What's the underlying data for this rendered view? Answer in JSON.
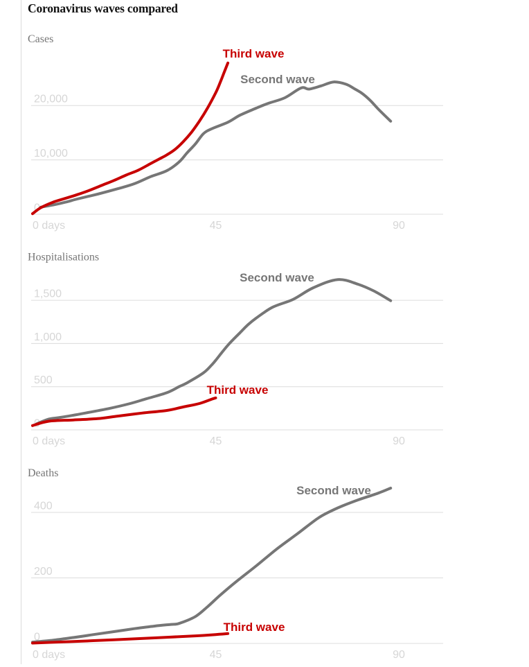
{
  "title": "Coronavirus waves compared",
  "colors": {
    "title": "#121212",
    "panel_label": "#767676",
    "tick_label": "#d6d6d6",
    "grid": "#dcdcdc",
    "rule": "#dcdcdc",
    "second_wave": "#767676",
    "third_wave": "#c70000"
  },
  "chart_data": [
    {
      "type": "line",
      "title": "Cases",
      "x_unit": "days",
      "xlim": [
        0,
        100
      ],
      "xticks": [
        "0 days",
        "45",
        "90"
      ],
      "yticks": [
        "20,000",
        "10,000",
        "0"
      ],
      "gridline_values": [
        20000,
        10000,
        0
      ],
      "legend_position": "inline-annotations",
      "grid": "horizontal-only",
      "annotations": [
        {
          "text": "Third wave"
        },
        {
          "text": "Second wave"
        }
      ],
      "series": [
        {
          "name": "Second wave",
          "color": "#767676",
          "points": [
            [
              2,
              1300
            ],
            [
              5,
              1700
            ],
            [
              8,
              2200
            ],
            [
              11,
              2800
            ],
            [
              16,
              3700
            ],
            [
              21,
              4700
            ],
            [
              25,
              5600
            ],
            [
              29,
              6900
            ],
            [
              33,
              8000
            ],
            [
              36,
              9600
            ],
            [
              38,
              11300
            ],
            [
              40,
              12900
            ],
            [
              42,
              14800
            ],
            [
              44,
              15700
            ],
            [
              48,
              16900
            ],
            [
              51,
              18200
            ],
            [
              55,
              19500
            ],
            [
              58,
              20400
            ],
            [
              62,
              21400
            ],
            [
              66,
              23200
            ],
            [
              68,
              23000
            ],
            [
              71,
              23600
            ],
            [
              74,
              24300
            ],
            [
              77,
              23900
            ],
            [
              79,
              23100
            ],
            [
              81,
              22200
            ],
            [
              83,
              20900
            ],
            [
              85,
              19300
            ],
            [
              88,
              17100
            ]
          ]
        },
        {
          "name": "Third wave",
          "color": "#c70000",
          "points": [
            [
              0,
              100
            ],
            [
              2,
              1200
            ],
            [
              5,
              2200
            ],
            [
              8,
              2900
            ],
            [
              11,
              3600
            ],
            [
              14,
              4400
            ],
            [
              17,
              5300
            ],
            [
              20,
              6200
            ],
            [
              23,
              7200
            ],
            [
              26,
              8100
            ],
            [
              29,
              9300
            ],
            [
              31,
              10100
            ],
            [
              33,
              10900
            ],
            [
              35,
              11900
            ],
            [
              37,
              13300
            ],
            [
              39,
              15000
            ],
            [
              41,
              17100
            ],
            [
              43,
              19500
            ],
            [
              45,
              22300
            ],
            [
              46,
              24000
            ],
            [
              47,
              25900
            ],
            [
              48,
              27800
            ]
          ]
        }
      ]
    },
    {
      "type": "line",
      "title": "Hospitalisations",
      "x_unit": "days",
      "xlim": [
        0,
        100
      ],
      "xticks": [
        "0 days",
        "45",
        "90"
      ],
      "yticks": [
        "1,500",
        "1,000",
        "500",
        "0"
      ],
      "gridline_values": [
        1500,
        1000,
        500,
        0
      ],
      "legend_position": "inline-annotations",
      "grid": "horizontal-only",
      "annotations": [
        {
          "text": "Second wave"
        },
        {
          "text": "Third wave"
        }
      ],
      "series": [
        {
          "name": "Second wave",
          "color": "#767676",
          "points": [
            [
              1,
              70
            ],
            [
              4,
              125
            ],
            [
              7,
              145
            ],
            [
              13,
              195
            ],
            [
              19,
              250
            ],
            [
              24,
              305
            ],
            [
              28,
              360
            ],
            [
              33,
              430
            ],
            [
              36,
              500
            ],
            [
              38,
              545
            ],
            [
              42,
              660
            ],
            [
              44,
              750
            ],
            [
              45,
              805
            ],
            [
              48,
              980
            ],
            [
              51,
              1125
            ],
            [
              53,
              1220
            ],
            [
              55,
              1295
            ],
            [
              59,
              1420
            ],
            [
              64,
              1510
            ],
            [
              69,
              1645
            ],
            [
              75,
              1740
            ],
            [
              80,
              1685
            ],
            [
              84,
              1605
            ],
            [
              88,
              1495
            ]
          ]
        },
        {
          "name": "Third wave",
          "color": "#c70000",
          "points": [
            [
              0,
              50
            ],
            [
              4,
              100
            ],
            [
              10,
              115
            ],
            [
              16,
              130
            ],
            [
              21,
              160
            ],
            [
              27,
              195
            ],
            [
              33,
              225
            ],
            [
              37,
              265
            ],
            [
              41,
              305
            ],
            [
              44,
              355
            ],
            [
              45,
              370
            ]
          ]
        }
      ]
    },
    {
      "type": "line",
      "title": "Deaths",
      "x_unit": "days",
      "xlim": [
        0,
        100
      ],
      "xticks": [
        "0 days",
        "45",
        "90"
      ],
      "yticks": [
        "400",
        "200",
        "0"
      ],
      "gridline_values": [
        400,
        200,
        0
      ],
      "legend_position": "inline-annotations",
      "grid": "horizontal-only",
      "annotations": [
        {
          "text": "Second wave"
        },
        {
          "text": "Third wave"
        }
      ],
      "series": [
        {
          "name": "Second wave",
          "color": "#767676",
          "points": [
            [
              0,
              4
            ],
            [
              5,
              10
            ],
            [
              10,
              18
            ],
            [
              15,
              27
            ],
            [
              20,
              36
            ],
            [
              25,
              45
            ],
            [
              30,
              53
            ],
            [
              34,
              58
            ],
            [
              36,
              61
            ],
            [
              40,
              82
            ],
            [
              43,
              112
            ],
            [
              46,
              146
            ],
            [
              50,
              188
            ],
            [
              55,
              237
            ],
            [
              60,
              288
            ],
            [
              65,
              334
            ],
            [
              70,
              381
            ],
            [
              73,
              402
            ],
            [
              76,
              419
            ],
            [
              80,
              438
            ],
            [
              85,
              459
            ],
            [
              88,
              474
            ]
          ]
        },
        {
          "name": "Third wave",
          "color": "#c70000",
          "points": [
            [
              0,
              1
            ],
            [
              10,
              6
            ],
            [
              20,
              11
            ],
            [
              30,
              17
            ],
            [
              40,
              23
            ],
            [
              45,
              27
            ],
            [
              48,
              30
            ]
          ]
        }
      ]
    }
  ]
}
